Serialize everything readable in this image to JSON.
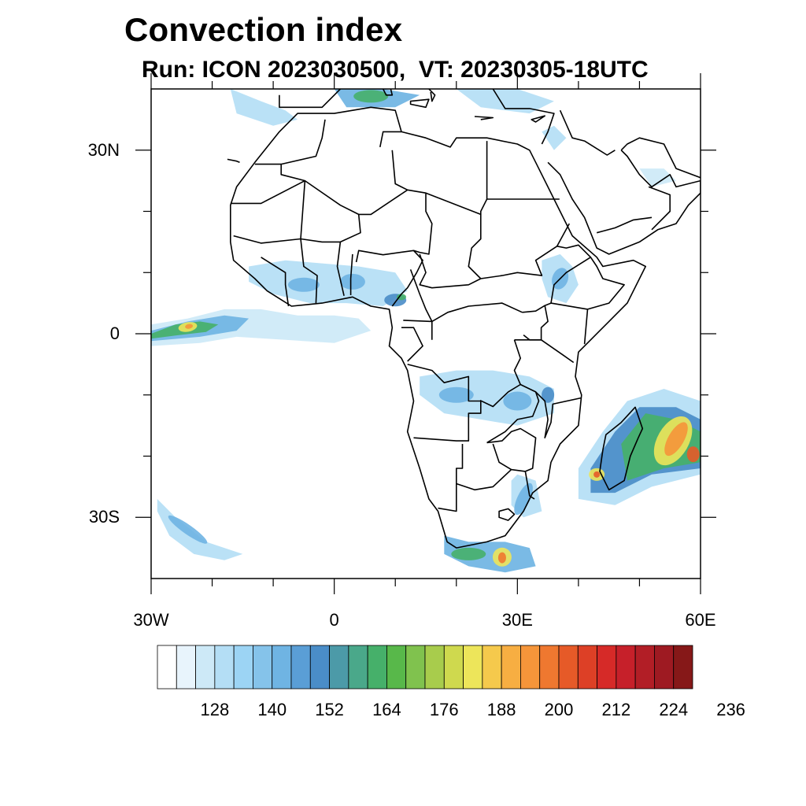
{
  "title": "Convection index",
  "subtitle": "Run: ICON 2023030500,  VT: 20230305-18UTC",
  "map": {
    "extent": {
      "lon_min": -30,
      "lon_max": 60,
      "lat_min": -40,
      "lat_max": 40
    },
    "lat_ticks": [
      {
        "value": 30,
        "label": "30N"
      },
      {
        "value": 0,
        "label": "0"
      },
      {
        "value": -30,
        "label": "30S"
      }
    ],
    "lon_ticks": [
      {
        "value": -30,
        "label": "30W"
      },
      {
        "value": 0,
        "label": "0"
      },
      {
        "value": 30,
        "label": "30E"
      },
      {
        "value": 60,
        "label": "60E"
      }
    ],
    "field_name": "Convection index",
    "convective_regions": [
      {
        "region": "equatorial-atlantic-band",
        "lon": -25,
        "lat": 1,
        "max_level": 200
      },
      {
        "region": "madagascar-mozambique-channel-system",
        "lon": 50,
        "lat": -18,
        "max_level": 212
      },
      {
        "region": "south-africa-south-coast",
        "lon": 27,
        "lat": -36,
        "max_level": 212
      },
      {
        "region": "west-africa",
        "lon": 0,
        "lat": 8,
        "max_level": 164
      },
      {
        "region": "central-southern-africa",
        "lon": 25,
        "lat": -12,
        "max_level": 164
      },
      {
        "region": "ethiopia",
        "lon": 38,
        "lat": 9,
        "max_level": 152
      },
      {
        "region": "southwest-atlantic-band",
        "lon": -23,
        "lat": -32,
        "max_level": 152
      },
      {
        "region": "mediterranean",
        "lon": 5,
        "lat": 38,
        "max_level": 164
      }
    ]
  },
  "colorbar": {
    "colors": [
      "#ffffff",
      "#e8f4fc",
      "#cde9f7",
      "#b4def5",
      "#9cd4f4",
      "#85c3ea",
      "#6fb4e3",
      "#5a9ed6",
      "#4a8dc8",
      "#4c9aa8",
      "#4aa88a",
      "#46b06a",
      "#58b84a",
      "#80c24e",
      "#a8cc4c",
      "#cfd94e",
      "#ede55a",
      "#f5c94c",
      "#f7ae42",
      "#f5953a",
      "#ef7830",
      "#e65a28",
      "#dd4026",
      "#d62a28",
      "#c6202a",
      "#b21e26",
      "#9e1a22",
      "#861818"
    ],
    "labels": [
      "128",
      "140",
      "152",
      "164",
      "176",
      "188",
      "200",
      "212",
      "224",
      "236"
    ]
  }
}
